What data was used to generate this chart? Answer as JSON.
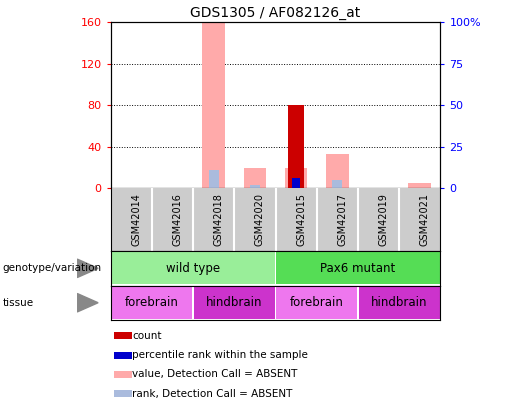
{
  "title": "GDS1305 / AF082126_at",
  "samples": [
    "GSM42014",
    "GSM42016",
    "GSM42018",
    "GSM42020",
    "GSM42015",
    "GSM42017",
    "GSM42019",
    "GSM42021"
  ],
  "count_values": [
    0,
    0,
    0,
    0,
    80,
    0,
    0,
    0
  ],
  "percentile_values": [
    0,
    0,
    0,
    0,
    10,
    0,
    0,
    0
  ],
  "absent_value_values": [
    0,
    0,
    160,
    20,
    20,
    33,
    0,
    5
  ],
  "absent_rank_values": [
    0,
    0,
    18,
    3,
    0,
    8,
    0,
    0
  ],
  "ylim_left": [
    0,
    160
  ],
  "ylim_right": [
    0,
    100
  ],
  "yticks_left": [
    0,
    40,
    80,
    120,
    160
  ],
  "yticks_right": [
    0,
    25,
    50,
    75,
    100
  ],
  "ytick_labels_right": [
    "0",
    "25",
    "50",
    "75",
    "100%"
  ],
  "color_count": "#cc0000",
  "color_percentile": "#0000cc",
  "color_absent_value": "#ffaaaa",
  "color_absent_rank": "#aabbdd",
  "genotype_groups": [
    {
      "label": "wild type",
      "start": 0,
      "end": 4,
      "color": "#99ee99"
    },
    {
      "label": "Pax6 mutant",
      "start": 4,
      "end": 8,
      "color": "#55dd55"
    }
  ],
  "tissue_groups": [
    {
      "label": "forebrain",
      "start": 0,
      "end": 2,
      "color": "#ee77ee"
    },
    {
      "label": "hindbrain",
      "start": 2,
      "end": 4,
      "color": "#cc33cc"
    },
    {
      "label": "forebrain",
      "start": 4,
      "end": 6,
      "color": "#ee77ee"
    },
    {
      "label": "hindbrain",
      "start": 6,
      "end": 8,
      "color": "#cc33cc"
    }
  ],
  "legend_items": [
    {
      "label": "count",
      "color": "#cc0000"
    },
    {
      "label": "percentile rank within the sample",
      "color": "#0000cc"
    },
    {
      "label": "value, Detection Call = ABSENT",
      "color": "#ffaaaa"
    },
    {
      "label": "rank, Detection Call = ABSENT",
      "color": "#aabbdd"
    }
  ],
  "background_color": "#ffffff",
  "xtick_bg": "#cccccc",
  "xtick_divider": "#ffffff"
}
